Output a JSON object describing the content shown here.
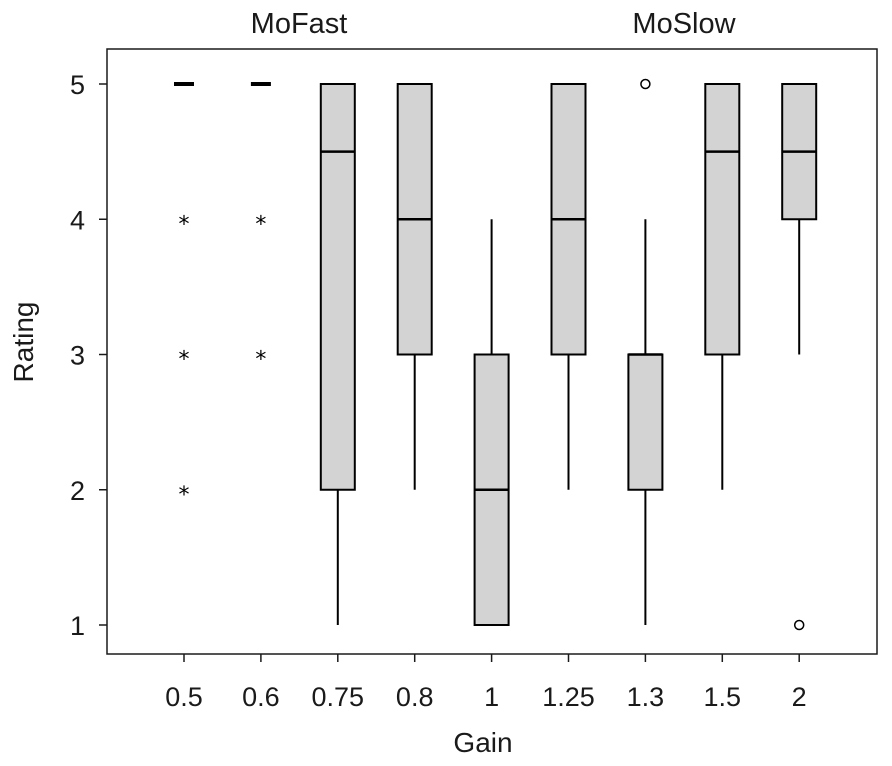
{
  "chart_data": {
    "type": "box",
    "title": "",
    "xlabel": "Gain",
    "ylabel": "Rating",
    "ylim": [
      0.8,
      5.23
    ],
    "yticks": [
      1,
      2,
      3,
      4,
      5
    ],
    "group_labels": [
      {
        "text": "MoFast",
        "over_categories": [
          "0.5",
          "0.6",
          "0.75",
          "0.8"
        ]
      },
      {
        "text": "MoSlow",
        "over_categories": [
          "1.25",
          "1.3",
          "1.5",
          "2"
        ]
      }
    ],
    "categories": [
      "0.5",
      "0.6",
      "0.75",
      "0.8",
      "1",
      "1.25",
      "1.3",
      "1.5",
      "2"
    ],
    "boxes": [
      {
        "category": "0.5",
        "whisker_low": 5,
        "q1": 5,
        "median": 5,
        "q3": 5,
        "whisker_high": 5,
        "outliers": [],
        "extremes": [
          4,
          3,
          2
        ]
      },
      {
        "category": "0.6",
        "whisker_low": 5,
        "q1": 5,
        "median": 5,
        "q3": 5,
        "whisker_high": 5,
        "outliers": [],
        "extremes": [
          4,
          3
        ]
      },
      {
        "category": "0.75",
        "whisker_low": 1,
        "q1": 2,
        "median": 4.5,
        "q3": 5,
        "whisker_high": 5,
        "outliers": [],
        "extremes": []
      },
      {
        "category": "0.8",
        "whisker_low": 2,
        "q1": 3,
        "median": 4,
        "q3": 5,
        "whisker_high": 5,
        "outliers": [],
        "extremes": []
      },
      {
        "category": "1",
        "whisker_low": 1,
        "q1": 1,
        "median": 2,
        "q3": 3,
        "whisker_high": 4,
        "outliers": [],
        "extremes": []
      },
      {
        "category": "1.25",
        "whisker_low": 2,
        "q1": 3,
        "median": 4,
        "q3": 5,
        "whisker_high": 5,
        "outliers": [],
        "extremes": []
      },
      {
        "category": "1.3",
        "whisker_low": 1,
        "q1": 2,
        "median": 3,
        "q3": 3,
        "whisker_high": 4,
        "outliers": [
          5
        ],
        "extremes": []
      },
      {
        "category": "1.5",
        "whisker_low": 2,
        "q1": 3,
        "median": 4.5,
        "q3": 5,
        "whisker_high": 5,
        "outliers": [],
        "extremes": []
      },
      {
        "category": "2",
        "whisker_low": 3,
        "q1": 4,
        "median": 4.5,
        "q3": 5,
        "whisker_high": 5,
        "outliers": [
          1
        ],
        "extremes": []
      }
    ],
    "grid": false,
    "legend": "none"
  },
  "colors": {
    "box_fill": "#d3d3d3",
    "stroke": "#000000",
    "background": "#ffffff"
  }
}
